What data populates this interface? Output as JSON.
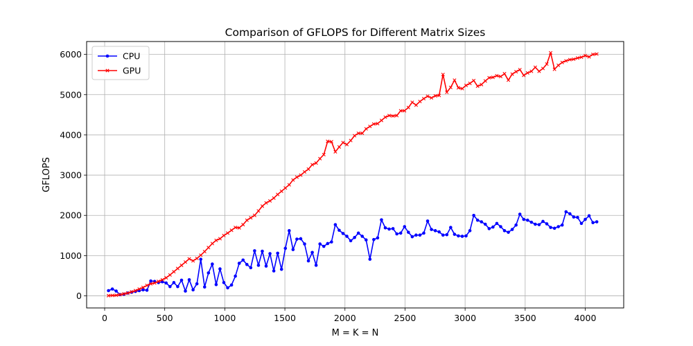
{
  "chart_data": {
    "type": "line",
    "title": "Comparison of GFLOPS for Different Matrix Sizes",
    "xlabel": "M = K = N",
    "ylabel": "GFLOPS",
    "xlim": [
      -150,
      4320
    ],
    "ylim": [
      -300,
      6320
    ],
    "xticks": [
      0,
      500,
      1000,
      1500,
      2000,
      2500,
      3000,
      3500,
      4000
    ],
    "yticks": [
      0,
      1000,
      2000,
      3000,
      4000,
      5000,
      6000
    ],
    "grid": true,
    "legend_position": "top-left",
    "x": [
      32,
      64,
      96,
      128,
      160,
      192,
      224,
      256,
      288,
      320,
      352,
      384,
      416,
      448,
      480,
      512,
      544,
      576,
      608,
      640,
      672,
      704,
      736,
      768,
      800,
      832,
      864,
      896,
      928,
      960,
      992,
      1024,
      1056,
      1088,
      1120,
      1152,
      1184,
      1216,
      1248,
      1280,
      1312,
      1344,
      1376,
      1408,
      1440,
      1472,
      1504,
      1536,
      1568,
      1600,
      1632,
      1664,
      1696,
      1728,
      1760,
      1792,
      1824,
      1856,
      1888,
      1920,
      1952,
      1984,
      2016,
      2048,
      2080,
      2112,
      2144,
      2176,
      2208,
      2240,
      2272,
      2304,
      2336,
      2368,
      2400,
      2432,
      2464,
      2496,
      2528,
      2560,
      2592,
      2624,
      2656,
      2688,
      2720,
      2752,
      2784,
      2816,
      2848,
      2880,
      2912,
      2944,
      2976,
      3008,
      3040,
      3072,
      3104,
      3136,
      3168,
      3200,
      3232,
      3264,
      3296,
      3328,
      3360,
      3392,
      3424,
      3456,
      3488,
      3520,
      3552,
      3584,
      3616,
      3648,
      3680,
      3712,
      3744,
      3776,
      3808,
      3840,
      3872,
      3904,
      3936,
      3968,
      4000,
      4032,
      4064,
      4096
    ],
    "series": [
      {
        "name": "CPU",
        "color": "#0000ff",
        "marker": "circle",
        "values": [
          130,
          170,
          120,
          30,
          40,
          70,
          90,
          110,
          130,
          150,
          140,
          370,
          360,
          330,
          350,
          320,
          230,
          330,
          230,
          390,
          120,
          400,
          150,
          300,
          910,
          220,
          570,
          790,
          280,
          670,
          330,
          200,
          270,
          490,
          810,
          890,
          780,
          700,
          1120,
          760,
          1110,
          740,
          1050,
          620,
          1060,
          660,
          1180,
          1620,
          1150,
          1410,
          1420,
          1290,
          870,
          1080,
          760,
          1290,
          1230,
          1300,
          1340,
          1770,
          1630,
          1550,
          1480,
          1370,
          1450,
          1560,
          1480,
          1390,
          910,
          1400,
          1440,
          1890,
          1690,
          1660,
          1670,
          1540,
          1560,
          1720,
          1580,
          1470,
          1510,
          1510,
          1560,
          1860,
          1650,
          1620,
          1590,
          1510,
          1520,
          1700,
          1530,
          1490,
          1480,
          1490,
          1620,
          2000,
          1880,
          1840,
          1780,
          1670,
          1710,
          1800,
          1720,
          1620,
          1580,
          1650,
          1760,
          2030,
          1900,
          1880,
          1830,
          1780,
          1770,
          1850,
          1790,
          1700,
          1680,
          1720,
          1760,
          2090,
          2040,
          1960,
          1950,
          1800,
          1900,
          1990,
          1820,
          1840
        ]
      },
      {
        "name": "GPU",
        "color": "#ff0000",
        "marker": "x",
        "values": [
          5,
          10,
          15,
          30,
          50,
          70,
          100,
          130,
          170,
          210,
          260,
          300,
          320,
          360,
          400,
          450,
          520,
          600,
          680,
          760,
          840,
          920,
          870,
          930,
          1010,
          1100,
          1200,
          1300,
          1380,
          1420,
          1500,
          1560,
          1630,
          1700,
          1690,
          1770,
          1880,
          1940,
          2000,
          2110,
          2230,
          2310,
          2360,
          2430,
          2520,
          2600,
          2680,
          2760,
          2880,
          2950,
          3000,
          3080,
          3150,
          3260,
          3300,
          3410,
          3510,
          3840,
          3830,
          3580,
          3700,
          3810,
          3760,
          3860,
          3980,
          4040,
          4040,
          4150,
          4210,
          4270,
          4280,
          4360,
          4440,
          4480,
          4470,
          4480,
          4600,
          4600,
          4680,
          4810,
          4740,
          4830,
          4900,
          4960,
          4920,
          4970,
          4980,
          5500,
          5060,
          5180,
          5360,
          5170,
          5150,
          5230,
          5280,
          5350,
          5210,
          5250,
          5340,
          5420,
          5430,
          5470,
          5450,
          5520,
          5360,
          5510,
          5570,
          5620,
          5480,
          5540,
          5580,
          5680,
          5580,
          5650,
          5760,
          6040,
          5630,
          5730,
          5800,
          5840,
          5870,
          5880,
          5910,
          5930,
          5970,
          5940,
          6000,
          6010
        ]
      }
    ]
  }
}
